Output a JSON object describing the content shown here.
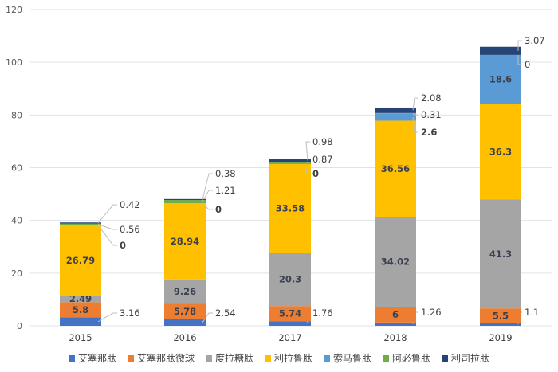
{
  "chart_data": {
    "type": "bar",
    "stacked": true,
    "categories": [
      "2015",
      "2016",
      "2017",
      "2018",
      "2019"
    ],
    "ylim": [
      0,
      120
    ],
    "yticks": [
      0,
      20,
      40,
      60,
      80,
      100,
      120
    ],
    "grid": true,
    "legend_position": "bottom",
    "series": [
      {
        "name": "艾塞那肽",
        "color": "#4472C4",
        "values": [
          3.16,
          2.54,
          1.76,
          1.26,
          1.1
        ]
      },
      {
        "name": "艾塞那肽微球",
        "color": "#ED7D31",
        "values": [
          5.8,
          5.78,
          5.74,
          6,
          5.5
        ]
      },
      {
        "name": "度拉糖肽",
        "color": "#A5A5A5",
        "values": [
          2.49,
          9.26,
          20.3,
          34.02,
          41.3
        ]
      },
      {
        "name": "利拉鲁肽",
        "color": "#FFC000",
        "values": [
          26.79,
          28.94,
          33.58,
          36.56,
          36.3
        ]
      },
      {
        "name": "索马鲁肽",
        "color": "#5B9BD5",
        "values": [
          0,
          0,
          0,
          2.6,
          18.6
        ]
      },
      {
        "name": "阿必鲁肽",
        "color": "#70AD47",
        "values": [
          0.56,
          1.21,
          0.87,
          0.31,
          0
        ]
      },
      {
        "name": "利司拉肽",
        "color": "#264478",
        "values": [
          0.42,
          0.38,
          0.98,
          2.08,
          3.07
        ]
      }
    ]
  }
}
